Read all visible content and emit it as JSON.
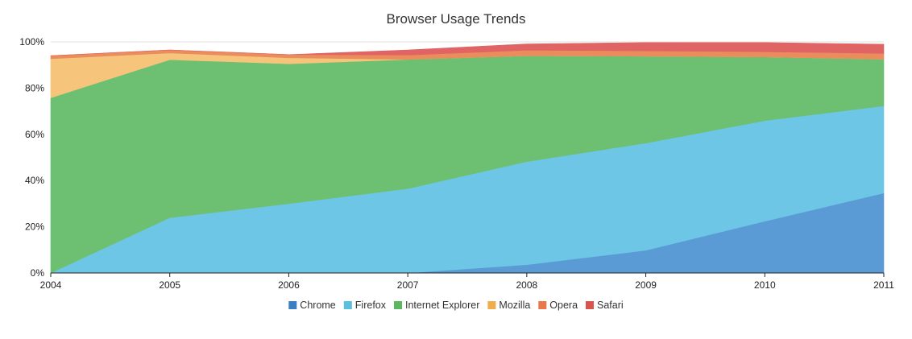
{
  "chart_data": {
    "type": "area",
    "stacked": true,
    "title": "Browser Usage Trends",
    "xlabel": "",
    "ylabel": "",
    "x": [
      "2004",
      "2005",
      "2006",
      "2007",
      "2008",
      "2009",
      "2010",
      "2011"
    ],
    "ylim": [
      0,
      100
    ],
    "y_ticks": [
      "0%",
      "20%",
      "40%",
      "60%",
      "80%",
      "100%"
    ],
    "y_tick_values": [
      0,
      20,
      40,
      60,
      80,
      100
    ],
    "grid": true,
    "legend_position": "bottom",
    "series": [
      {
        "name": "Chrome",
        "color": "#5b9bd5",
        "legend_color": "#3a7fc2",
        "values": [
          0,
          0,
          0,
          0,
          3.6,
          9.8,
          22.4,
          34.6
        ]
      },
      {
        "name": "Firefox",
        "color": "#6ec6e6",
        "legend_color": "#5bc0de",
        "values": [
          0,
          23.9,
          30.0,
          36.5,
          44.6,
          46.4,
          43.5,
          37.7
        ]
      },
      {
        "name": "Internet Explorer",
        "color": "#6dc071",
        "legend_color": "#5cb85c",
        "values": [
          75.8,
          68.4,
          60.5,
          55.9,
          45.8,
          37.6,
          27.6,
          20.2
        ]
      },
      {
        "name": "Mozilla",
        "color": "#f7c47c",
        "legend_color": "#f0ad4e",
        "values": [
          16.9,
          2.9,
          2.6,
          0,
          0,
          0,
          0,
          0
        ]
      },
      {
        "name": "Opera",
        "color": "#ea8c5c",
        "legend_color": "#e8784a",
        "values": [
          1.3,
          1.3,
          1.4,
          1.9,
          2.4,
          2.3,
          2.2,
          2.5
        ]
      },
      {
        "name": "Safari",
        "color": "#e06464",
        "legend_color": "#d9534f",
        "values": [
          0,
          0,
          0,
          2.2,
          2.7,
          3.6,
          4.0,
          4.0
        ]
      }
    ]
  }
}
